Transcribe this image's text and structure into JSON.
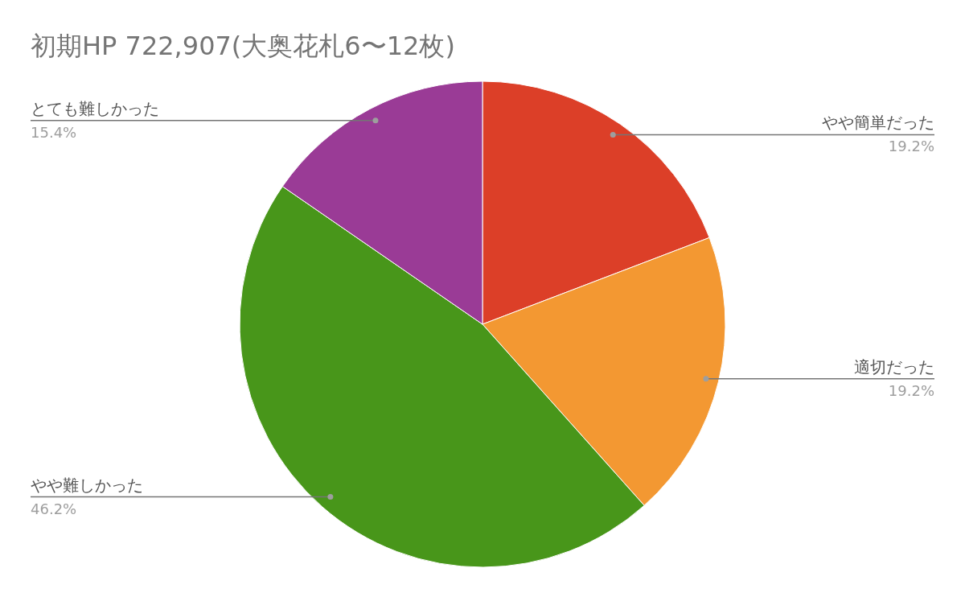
{
  "chart_data": {
    "type": "pie",
    "title": "初期HP 722,907(大奥花札6〜12枚)",
    "categories": [
      "やや簡単だった",
      "適切だった",
      "やや難しかった",
      "とても難しかった"
    ],
    "values": [
      19.2,
      19.2,
      46.2,
      15.4
    ],
    "colors": [
      "#dc3f28",
      "#f39832",
      "#48961a",
      "#9a3b96"
    ],
    "value_labels": [
      "19.2%",
      "19.2%",
      "46.2%",
      "15.4%"
    ]
  }
}
